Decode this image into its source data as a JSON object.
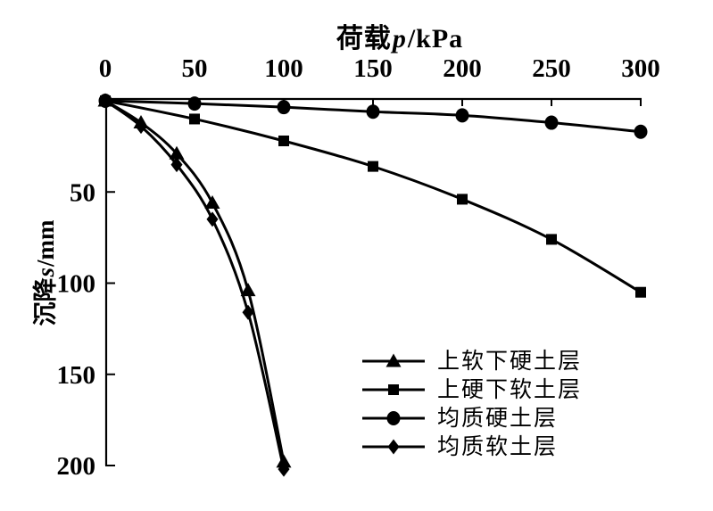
{
  "title": {
    "prefix": "荷载",
    "variable": "p",
    "unit": "/kPa"
  },
  "y_axis_title": {
    "prefix": "沉降",
    "variable": "s",
    "unit": "/mm"
  },
  "colors": {
    "foreground": "#000000",
    "background": "#ffffff"
  },
  "chart_data": {
    "type": "line",
    "title": "荷载 p/kPa (top x-axis)",
    "xlabel": "荷载 p/kPa",
    "ylabel": "沉降 s/mm",
    "xlim": [
      0,
      300
    ],
    "ylim": [
      0,
      200
    ],
    "y_inverted": true,
    "grid": false,
    "x_ticks": [
      0,
      50,
      100,
      150,
      200,
      250,
      300
    ],
    "y_ticks": [
      50,
      100,
      150,
      200
    ],
    "legend_position": "inside-bottom-center",
    "series": [
      {
        "name": "上软下硬土层",
        "marker": "triangle",
        "points": [
          [
            0,
            0
          ],
          [
            20,
            12
          ],
          [
            40,
            29
          ],
          [
            60,
            56
          ],
          [
            80,
            104
          ],
          [
            100,
            198
          ]
        ]
      },
      {
        "name": "上硬下软土层",
        "marker": "square",
        "points": [
          [
            0,
            0
          ],
          [
            50,
            10
          ],
          [
            100,
            22
          ],
          [
            150,
            36
          ],
          [
            200,
            54
          ],
          [
            250,
            76
          ],
          [
            300,
            105
          ]
        ]
      },
      {
        "name": "均质硬土层",
        "marker": "circle",
        "points": [
          [
            0,
            0
          ],
          [
            50,
            1.5
          ],
          [
            100,
            3.5
          ],
          [
            150,
            6
          ],
          [
            200,
            8
          ],
          [
            250,
            12
          ],
          [
            300,
            17
          ]
        ]
      },
      {
        "name": "均质软土层",
        "marker": "diamond",
        "points": [
          [
            0,
            0
          ],
          [
            20,
            14
          ],
          [
            40,
            35
          ],
          [
            60,
            65
          ],
          [
            80,
            116
          ],
          [
            100,
            202
          ]
        ]
      }
    ]
  }
}
